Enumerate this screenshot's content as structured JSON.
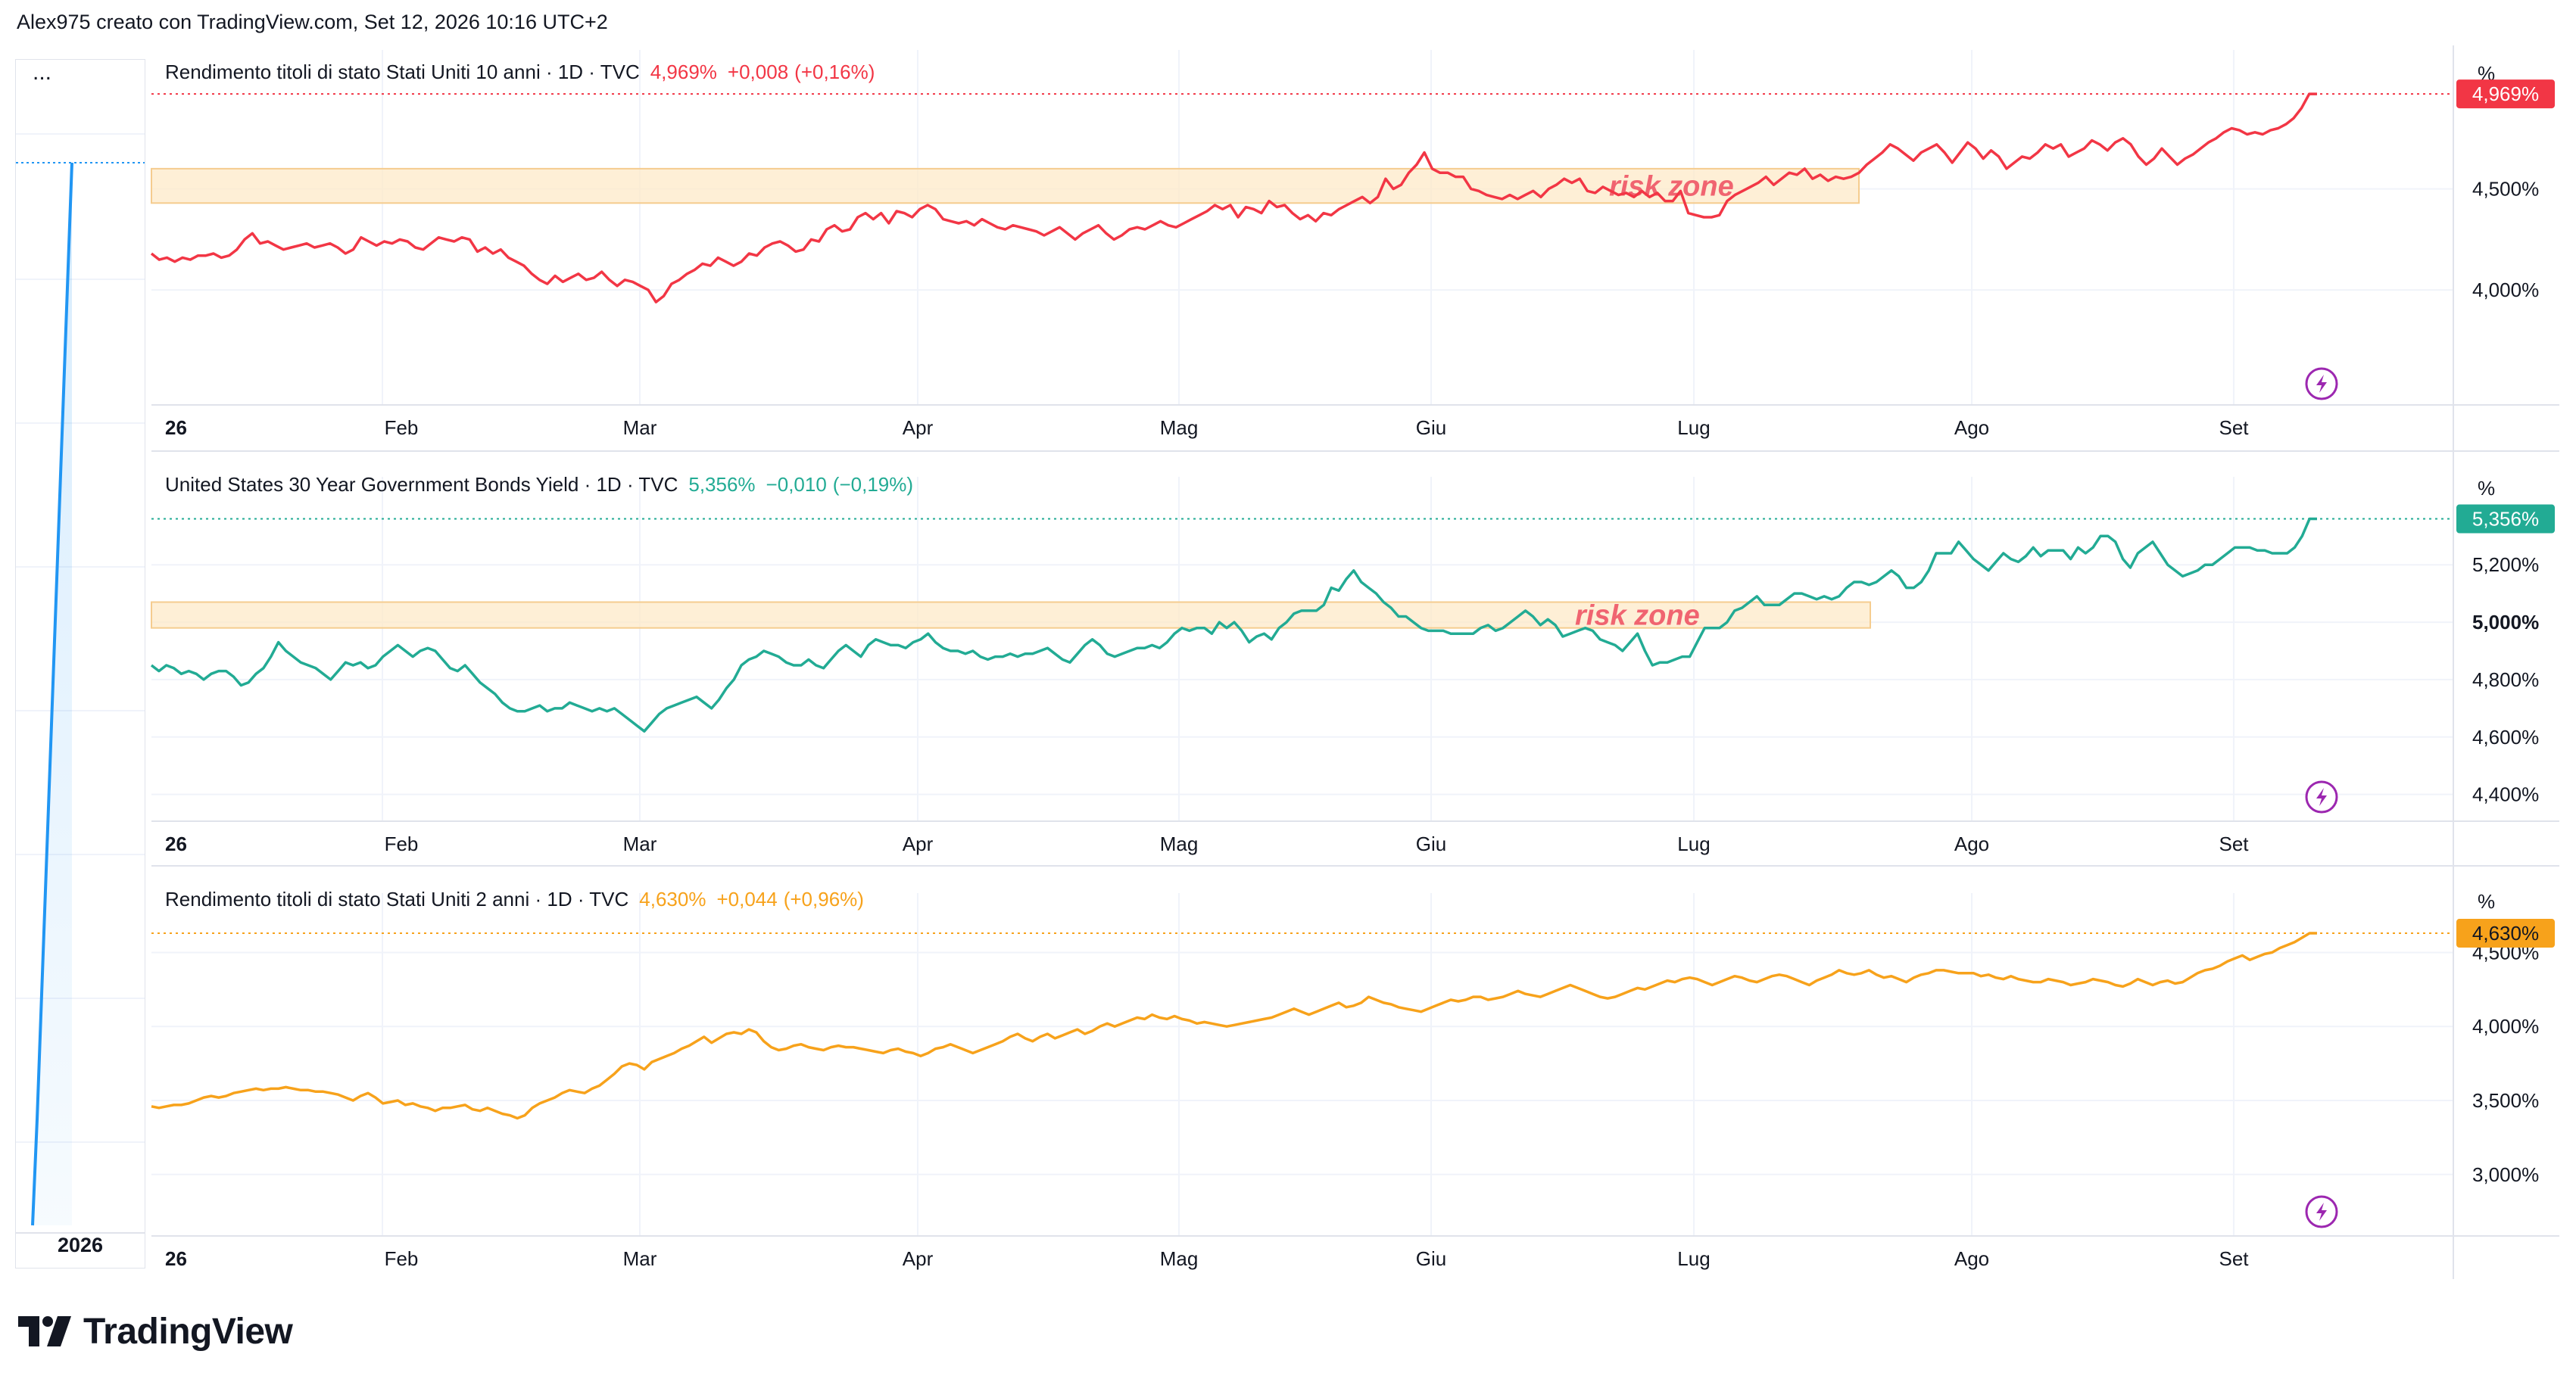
{
  "header": {
    "attribution": "Alex975 creato con TradingView.com, Set 12, 2026 10:16 UTC+2"
  },
  "left_panel": {
    "menu": "...",
    "year": "2026"
  },
  "brand": {
    "logo_text": "TradingView"
  },
  "colors": {
    "red": "#f23645",
    "teal": "#22ab94",
    "orange": "#f7a21b",
    "zone_fill": "#fde8c4",
    "zone_border": "#f5cc8f",
    "zone_text": "#f06470",
    "purple": "#9c27b0",
    "blue": "#2196f3"
  },
  "chart_data": [
    {
      "type": "line",
      "title": "Rendimento titoli di stato Stati Uniti 10 anni",
      "interval": "1D",
      "source": "TVC",
      "price": "4,969%",
      "change": "+0,008",
      "change_pct": "(+0,16%)",
      "color": "#f23645",
      "unit": "%",
      "last_label": "4,969%",
      "y_ticks": [
        "4,500%",
        "4,000%"
      ],
      "x_ticks": [
        "26",
        "Feb",
        "Mar",
        "Apr",
        "Mag",
        "Giu",
        "Lug",
        "Ago",
        "Set"
      ],
      "annotation": {
        "text": "risk zone",
        "y_low": 4.43,
        "y_high": 4.6
      },
      "ylim": [
        3.45,
        5.15
      ],
      "values": [
        4.18,
        4.15,
        4.16,
        4.14,
        4.16,
        4.15,
        4.17,
        4.17,
        4.18,
        4.16,
        4.17,
        4.2,
        4.25,
        4.28,
        4.23,
        4.24,
        4.22,
        4.2,
        4.21,
        4.22,
        4.23,
        4.21,
        4.22,
        4.23,
        4.21,
        4.18,
        4.2,
        4.26,
        4.24,
        4.22,
        4.24,
        4.23,
        4.25,
        4.24,
        4.21,
        4.2,
        4.23,
        4.26,
        4.25,
        4.24,
        4.26,
        4.25,
        4.19,
        4.21,
        4.18,
        4.2,
        4.16,
        4.14,
        4.12,
        4.08,
        4.05,
        4.03,
        4.07,
        4.04,
        4.06,
        4.08,
        4.05,
        4.06,
        4.09,
        4.05,
        4.02,
        4.05,
        4.04,
        4.02,
        4.0,
        3.94,
        3.97,
        4.03,
        4.05,
        4.08,
        4.1,
        4.13,
        4.12,
        4.16,
        4.14,
        4.12,
        4.14,
        4.18,
        4.17,
        4.21,
        4.23,
        4.24,
        4.22,
        4.19,
        4.2,
        4.25,
        4.24,
        4.3,
        4.32,
        4.29,
        4.3,
        4.36,
        4.38,
        4.35,
        4.38,
        4.33,
        4.39,
        4.38,
        4.36,
        4.4,
        4.42,
        4.4,
        4.35,
        4.34,
        4.33,
        4.34,
        4.32,
        4.35,
        4.33,
        4.31,
        4.3,
        4.32,
        4.31,
        4.3,
        4.29,
        4.27,
        4.29,
        4.31,
        4.28,
        4.25,
        4.28,
        4.3,
        4.32,
        4.28,
        4.25,
        4.27,
        4.3,
        4.31,
        4.3,
        4.32,
        4.34,
        4.32,
        4.31,
        4.33,
        4.35,
        4.37,
        4.39,
        4.42,
        4.4,
        4.42,
        4.36,
        4.41,
        4.4,
        4.38,
        4.44,
        4.41,
        4.42,
        4.38,
        4.35,
        4.37,
        4.34,
        4.38,
        4.37,
        4.4,
        4.42,
        4.44,
        4.46,
        4.43,
        4.46,
        4.55,
        4.5,
        4.52,
        4.58,
        4.62,
        4.68,
        4.6,
        4.58,
        4.58,
        4.56,
        4.56,
        4.5,
        4.49,
        4.47,
        4.46,
        4.45,
        4.47,
        4.45,
        4.47,
        4.49,
        4.46,
        4.5,
        4.52,
        4.55,
        4.53,
        4.55,
        4.49,
        4.48,
        4.51,
        4.49,
        4.47,
        4.48,
        4.46,
        4.49,
        4.46,
        4.48,
        4.44,
        4.44,
        4.49,
        4.38,
        4.37,
        4.36,
        4.36,
        4.37,
        4.44,
        4.47,
        4.49,
        4.51,
        4.53,
        4.56,
        4.52,
        4.55,
        4.58,
        4.57,
        4.6,
        4.55,
        4.57,
        4.54,
        4.56,
        4.55,
        4.56,
        4.58,
        4.62,
        4.65,
        4.68,
        4.72,
        4.7,
        4.67,
        4.64,
        4.68,
        4.7,
        4.72,
        4.68,
        4.63,
        4.68,
        4.73,
        4.7,
        4.65,
        4.69,
        4.66,
        4.6,
        4.63,
        4.66,
        4.65,
        4.68,
        4.72,
        4.7,
        4.72,
        4.66,
        4.68,
        4.7,
        4.74,
        4.72,
        4.69,
        4.73,
        4.75,
        4.72,
        4.66,
        4.62,
        4.65,
        4.7,
        4.66,
        4.62,
        4.65,
        4.67,
        4.7,
        4.73,
        4.75,
        4.78,
        4.8,
        4.79,
        4.77,
        4.78,
        4.77,
        4.79,
        4.8,
        4.82,
        4.85,
        4.9,
        4.97,
        4.97
      ]
    },
    {
      "type": "line",
      "title": "United States 30 Year Government Bonds Yield",
      "interval": "1D",
      "source": "TVC",
      "price": "5,356%",
      "change": "−0,010",
      "change_pct": "(−0,19%)",
      "color": "#22ab94",
      "unit": "%",
      "last_label": "5,356%",
      "y_ticks": [
        "5,200%",
        "5,000%",
        "4,800%",
        "4,600%",
        "4,400%"
      ],
      "x_ticks": [
        "26",
        "Feb",
        "Mar",
        "Apr",
        "Mag",
        "Giu",
        "Lug",
        "Ago",
        "Set"
      ],
      "annotation": {
        "text": "risk zone",
        "y_low": 4.98,
        "y_high": 5.07
      },
      "ylim": [
        4.32,
        5.48
      ],
      "values": [
        4.85,
        4.83,
        4.85,
        4.84,
        4.82,
        4.83,
        4.82,
        4.8,
        4.82,
        4.83,
        4.83,
        4.81,
        4.78,
        4.79,
        4.82,
        4.84,
        4.88,
        4.93,
        4.9,
        4.88,
        4.86,
        4.85,
        4.84,
        4.82,
        4.8,
        4.83,
        4.86,
        4.85,
        4.86,
        4.84,
        4.85,
        4.88,
        4.9,
        4.92,
        4.9,
        4.88,
        4.9,
        4.91,
        4.9,
        4.87,
        4.84,
        4.83,
        4.85,
        4.82,
        4.79,
        4.77,
        4.75,
        4.72,
        4.7,
        4.69,
        4.69,
        4.7,
        4.71,
        4.69,
        4.7,
        4.7,
        4.72,
        4.71,
        4.7,
        4.69,
        4.7,
        4.69,
        4.7,
        4.68,
        4.66,
        4.64,
        4.62,
        4.65,
        4.68,
        4.7,
        4.71,
        4.72,
        4.73,
        4.74,
        4.72,
        4.7,
        4.73,
        4.77,
        4.8,
        4.85,
        4.87,
        4.88,
        4.9,
        4.89,
        4.88,
        4.86,
        4.85,
        4.85,
        4.87,
        4.85,
        4.84,
        4.87,
        4.9,
        4.92,
        4.9,
        4.88,
        4.92,
        4.94,
        4.93,
        4.92,
        4.92,
        4.91,
        4.93,
        4.94,
        4.96,
        4.93,
        4.91,
        4.9,
        4.9,
        4.89,
        4.9,
        4.88,
        4.87,
        4.88,
        4.88,
        4.89,
        4.88,
        4.89,
        4.89,
        4.9,
        4.91,
        4.89,
        4.87,
        4.86,
        4.89,
        4.92,
        4.94,
        4.92,
        4.89,
        4.88,
        4.89,
        4.9,
        4.91,
        4.91,
        4.92,
        4.91,
        4.93,
        4.96,
        4.98,
        4.97,
        4.98,
        4.98,
        4.96,
        5.0,
        4.98,
        5.0,
        4.97,
        4.93,
        4.95,
        4.96,
        4.94,
        4.98,
        5.0,
        5.03,
        5.04,
        5.04,
        5.04,
        5.06,
        5.12,
        5.11,
        5.15,
        5.18,
        5.14,
        5.12,
        5.1,
        5.07,
        5.05,
        5.02,
        5.02,
        5.0,
        4.98,
        4.97,
        4.97,
        4.97,
        4.96,
        4.96,
        4.96,
        4.96,
        4.98,
        4.99,
        4.97,
        4.98,
        5.0,
        5.02,
        5.04,
        5.02,
        4.99,
        5.01,
        4.99,
        4.95,
        4.96,
        4.97,
        4.98,
        4.97,
        4.94,
        4.93,
        4.92,
        4.9,
        4.93,
        4.96,
        4.9,
        4.85,
        4.86,
        4.86,
        4.87,
        4.88,
        4.88,
        4.93,
        4.98,
        4.98,
        4.98,
        5.0,
        5.04,
        5.05,
        5.07,
        5.09,
        5.06,
        5.06,
        5.06,
        5.08,
        5.1,
        5.1,
        5.09,
        5.08,
        5.09,
        5.08,
        5.09,
        5.12,
        5.14,
        5.14,
        5.13,
        5.14,
        5.16,
        5.18,
        5.16,
        5.12,
        5.12,
        5.14,
        5.18,
        5.24,
        5.24,
        5.24,
        5.28,
        5.25,
        5.22,
        5.2,
        5.18,
        5.21,
        5.24,
        5.22,
        5.21,
        5.23,
        5.26,
        5.23,
        5.25,
        5.25,
        5.25,
        5.22,
        5.26,
        5.24,
        5.26,
        5.3,
        5.3,
        5.28,
        5.22,
        5.19,
        5.24,
        5.26,
        5.28,
        5.24,
        5.2,
        5.18,
        5.16,
        5.17,
        5.18,
        5.2,
        5.2,
        5.22,
        5.24,
        5.26,
        5.26,
        5.26,
        5.25,
        5.25,
        5.24,
        5.24,
        5.24,
        5.26,
        5.3,
        5.36,
        5.36
      ]
    },
    {
      "type": "line",
      "title": "Rendimento titoli di stato Stati Uniti 2 anni",
      "interval": "1D",
      "source": "TVC",
      "price": "4,630%",
      "change": "+0,044",
      "change_pct": "(+0,96%)",
      "color": "#f7a21b",
      "unit": "%",
      "last_label": "4,630%",
      "y_ticks": [
        "4,500%",
        "4,000%",
        "3,500%",
        "3,000%"
      ],
      "x_ticks": [
        "26",
        "Feb",
        "Mar",
        "Apr",
        "Mag",
        "Giu",
        "Lug",
        "Ago",
        "Set"
      ],
      "ylim": [
        2.6,
        4.85
      ],
      "values": [
        3.46,
        3.45,
        3.46,
        3.47,
        3.47,
        3.48,
        3.5,
        3.52,
        3.53,
        3.52,
        3.53,
        3.55,
        3.56,
        3.57,
        3.58,
        3.57,
        3.58,
        3.58,
        3.59,
        3.58,
        3.57,
        3.57,
        3.56,
        3.56,
        3.55,
        3.54,
        3.52,
        3.5,
        3.53,
        3.55,
        3.52,
        3.48,
        3.49,
        3.5,
        3.47,
        3.48,
        3.46,
        3.45,
        3.43,
        3.45,
        3.45,
        3.46,
        3.47,
        3.44,
        3.43,
        3.45,
        3.43,
        3.41,
        3.4,
        3.38,
        3.4,
        3.45,
        3.48,
        3.5,
        3.52,
        3.55,
        3.57,
        3.56,
        3.55,
        3.58,
        3.6,
        3.64,
        3.68,
        3.73,
        3.75,
        3.74,
        3.71,
        3.76,
        3.78,
        3.8,
        3.82,
        3.85,
        3.87,
        3.9,
        3.93,
        3.89,
        3.92,
        3.95,
        3.96,
        3.95,
        3.98,
        3.96,
        3.9,
        3.86,
        3.84,
        3.85,
        3.87,
        3.88,
        3.86,
        3.85,
        3.84,
        3.86,
        3.87,
        3.86,
        3.86,
        3.85,
        3.84,
        3.83,
        3.82,
        3.84,
        3.85,
        3.83,
        3.82,
        3.8,
        3.82,
        3.85,
        3.86,
        3.88,
        3.86,
        3.84,
        3.82,
        3.84,
        3.86,
        3.88,
        3.9,
        3.93,
        3.95,
        3.92,
        3.9,
        3.93,
        3.95,
        3.92,
        3.94,
        3.96,
        3.98,
        3.95,
        3.97,
        4.0,
        4.02,
        4.0,
        4.02,
        4.04,
        4.06,
        4.05,
        4.08,
        4.06,
        4.05,
        4.07,
        4.05,
        4.04,
        4.02,
        4.03,
        4.02,
        4.01,
        4.0,
        4.01,
        4.02,
        4.03,
        4.04,
        4.05,
        4.06,
        4.08,
        4.1,
        4.12,
        4.1,
        4.08,
        4.1,
        4.12,
        4.14,
        4.16,
        4.13,
        4.14,
        4.16,
        4.2,
        4.18,
        4.16,
        4.15,
        4.13,
        4.12,
        4.11,
        4.1,
        4.12,
        4.14,
        4.16,
        4.18,
        4.17,
        4.18,
        4.2,
        4.2,
        4.18,
        4.19,
        4.2,
        4.22,
        4.24,
        4.22,
        4.21,
        4.2,
        4.22,
        4.24,
        4.26,
        4.28,
        4.26,
        4.24,
        4.22,
        4.2,
        4.19,
        4.2,
        4.22,
        4.24,
        4.26,
        4.25,
        4.27,
        4.29,
        4.31,
        4.3,
        4.32,
        4.33,
        4.32,
        4.3,
        4.28,
        4.3,
        4.32,
        4.34,
        4.33,
        4.31,
        4.3,
        4.32,
        4.34,
        4.35,
        4.34,
        4.32,
        4.3,
        4.28,
        4.31,
        4.33,
        4.35,
        4.38,
        4.36,
        4.35,
        4.36,
        4.38,
        4.35,
        4.33,
        4.34,
        4.32,
        4.3,
        4.33,
        4.35,
        4.36,
        4.38,
        4.38,
        4.37,
        4.36,
        4.36,
        4.36,
        4.34,
        4.35,
        4.33,
        4.32,
        4.34,
        4.32,
        4.31,
        4.3,
        4.3,
        4.32,
        4.31,
        4.3,
        4.28,
        4.29,
        4.3,
        4.32,
        4.31,
        4.3,
        4.28,
        4.27,
        4.29,
        4.32,
        4.3,
        4.28,
        4.3,
        4.31,
        4.29,
        4.3,
        4.33,
        4.36,
        4.38,
        4.39,
        4.41,
        4.44,
        4.46,
        4.48,
        4.45,
        4.47,
        4.49,
        4.5,
        4.53,
        4.55,
        4.57,
        4.6,
        4.63,
        4.63
      ]
    }
  ]
}
